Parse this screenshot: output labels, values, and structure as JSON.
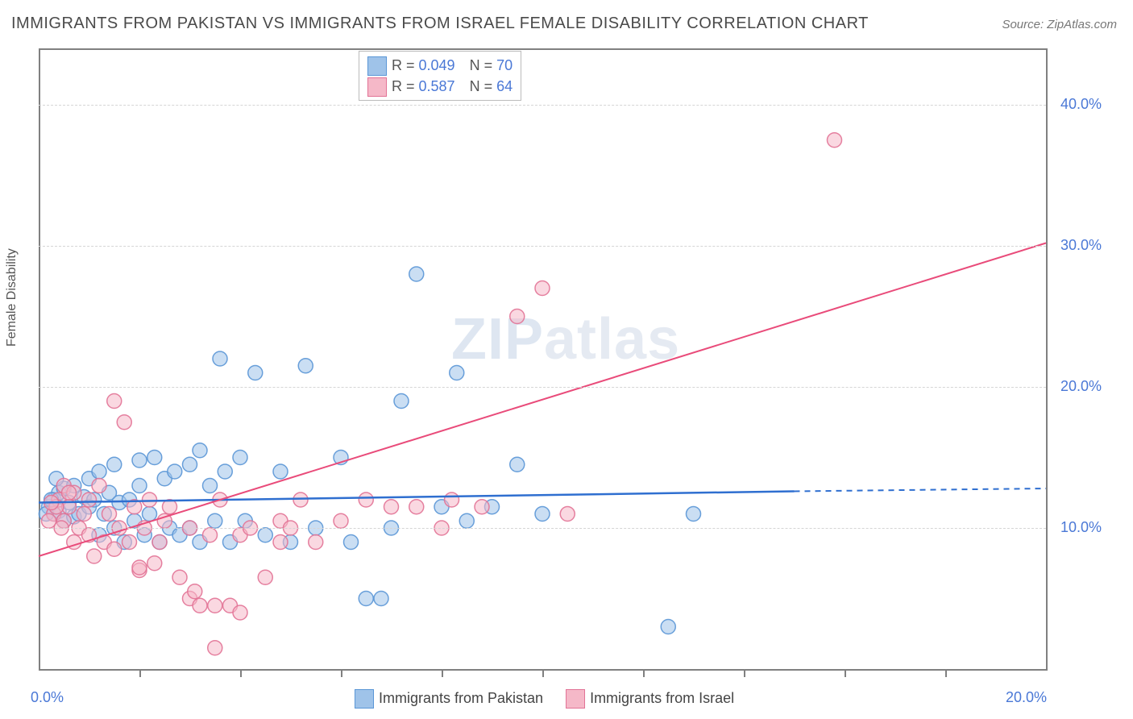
{
  "title": "IMMIGRANTS FROM PAKISTAN VS IMMIGRANTS FROM ISRAEL FEMALE DISABILITY CORRELATION CHART",
  "source": "Source: ZipAtlas.com",
  "watermark": "ZIPatlas",
  "ylabel": "Female Disability",
  "chart": {
    "type": "scatter",
    "xlim": [
      0,
      20
    ],
    "ylim": [
      0,
      44
    ],
    "xticks": [
      0,
      20
    ],
    "xtick_minor": [
      2,
      4,
      6,
      8,
      10,
      12,
      14,
      16,
      18
    ],
    "yticks": [
      10,
      20,
      30,
      40
    ],
    "ytick_labels": [
      "10.0%",
      "20.0%",
      "30.0%",
      "40.0%"
    ],
    "xtick_labels": [
      "0.0%",
      "20.0%"
    ],
    "grid_color": "#d5d5d5",
    "background": "#ffffff",
    "series": [
      {
        "name": "Immigrants from Pakistan",
        "color_fill": "#9fc3e9",
        "color_stroke": "#5a96d6",
        "marker_r": 9,
        "marker_opacity": 0.55,
        "R": 0.049,
        "N": 70,
        "trend": {
          "x1": 0,
          "y1": 11.8,
          "x2": 15,
          "y2": 12.6,
          "dash_from_x": 15,
          "dash_to_x": 20,
          "dash_y": 12.8,
          "color": "#2f6fd0",
          "width": 2.5
        },
        "points": [
          [
            0.2,
            11.5
          ],
          [
            0.3,
            12.0
          ],
          [
            0.3,
            11.0
          ],
          [
            0.4,
            12.5
          ],
          [
            0.4,
            11.2
          ],
          [
            0.5,
            12.8
          ],
          [
            0.5,
            10.5
          ],
          [
            0.6,
            11.8
          ],
          [
            0.7,
            13.0
          ],
          [
            0.7,
            10.8
          ],
          [
            0.8,
            11.0
          ],
          [
            0.9,
            12.2
          ],
          [
            1.0,
            11.5
          ],
          [
            1.0,
            13.5
          ],
          [
            1.1,
            12.0
          ],
          [
            1.2,
            9.5
          ],
          [
            1.2,
            14.0
          ],
          [
            1.3,
            11.0
          ],
          [
            1.4,
            12.5
          ],
          [
            1.5,
            10.0
          ],
          [
            1.5,
            14.5
          ],
          [
            1.6,
            11.8
          ],
          [
            1.7,
            9.0
          ],
          [
            1.8,
            12.0
          ],
          [
            1.9,
            10.5
          ],
          [
            2.0,
            13.0
          ],
          [
            2.0,
            14.8
          ],
          [
            2.1,
            9.5
          ],
          [
            2.2,
            11.0
          ],
          [
            2.3,
            15.0
          ],
          [
            2.4,
            9.0
          ],
          [
            2.5,
            13.5
          ],
          [
            2.6,
            10.0
          ],
          [
            2.7,
            14.0
          ],
          [
            2.8,
            9.5
          ],
          [
            3.0,
            14.5
          ],
          [
            3.0,
            10.0
          ],
          [
            3.2,
            15.5
          ],
          [
            3.2,
            9.0
          ],
          [
            3.4,
            13.0
          ],
          [
            3.5,
            10.5
          ],
          [
            3.6,
            22.0
          ],
          [
            3.7,
            14.0
          ],
          [
            3.8,
            9.0
          ],
          [
            4.0,
            15.0
          ],
          [
            4.1,
            10.5
          ],
          [
            4.3,
            21.0
          ],
          [
            4.5,
            9.5
          ],
          [
            4.8,
            14.0
          ],
          [
            5.0,
            9.0
          ],
          [
            5.3,
            21.5
          ],
          [
            5.5,
            10.0
          ],
          [
            6.0,
            15.0
          ],
          [
            6.2,
            9.0
          ],
          [
            6.5,
            5.0
          ],
          [
            6.8,
            5.0
          ],
          [
            7.0,
            10.0
          ],
          [
            7.2,
            19.0
          ],
          [
            7.5,
            28.0
          ],
          [
            8.0,
            11.5
          ],
          [
            8.3,
            21.0
          ],
          [
            8.5,
            10.5
          ],
          [
            9.0,
            11.5
          ],
          [
            9.5,
            14.5
          ],
          [
            10.0,
            11.0
          ],
          [
            12.5,
            3.0
          ],
          [
            13.0,
            11.0
          ],
          [
            0.25,
            12.0
          ],
          [
            0.35,
            13.5
          ],
          [
            0.15,
            11.0
          ]
        ]
      },
      {
        "name": "Immigrants from Israel",
        "color_fill": "#f5b8c8",
        "color_stroke": "#e27396",
        "marker_r": 9,
        "marker_opacity": 0.55,
        "R": 0.587,
        "N": 64,
        "trend": {
          "x1": 0,
          "y1": 8.0,
          "x2": 20,
          "y2": 30.2,
          "color": "#e94b7a",
          "width": 2
        },
        "points": [
          [
            0.3,
            11.0
          ],
          [
            0.4,
            12.0
          ],
          [
            0.5,
            10.5
          ],
          [
            0.5,
            13.0
          ],
          [
            0.6,
            11.5
          ],
          [
            0.7,
            9.0
          ],
          [
            0.7,
            12.5
          ],
          [
            0.8,
            10.0
          ],
          [
            0.9,
            11.0
          ],
          [
            1.0,
            9.5
          ],
          [
            1.0,
            12.0
          ],
          [
            1.1,
            8.0
          ],
          [
            1.2,
            13.0
          ],
          [
            1.3,
            9.0
          ],
          [
            1.4,
            11.0
          ],
          [
            1.5,
            19.0
          ],
          [
            1.5,
            8.5
          ],
          [
            1.6,
            10.0
          ],
          [
            1.7,
            17.5
          ],
          [
            1.8,
            9.0
          ],
          [
            1.9,
            11.5
          ],
          [
            2.0,
            7.0
          ],
          [
            2.0,
            7.2
          ],
          [
            2.1,
            10.0
          ],
          [
            2.2,
            12.0
          ],
          [
            2.3,
            7.5
          ],
          [
            2.4,
            9.0
          ],
          [
            2.5,
            10.5
          ],
          [
            2.6,
            11.5
          ],
          [
            2.8,
            6.5
          ],
          [
            3.0,
            10.0
          ],
          [
            3.0,
            5.0
          ],
          [
            3.1,
            5.5
          ],
          [
            3.2,
            4.5
          ],
          [
            3.4,
            9.5
          ],
          [
            3.5,
            4.5
          ],
          [
            3.5,
            1.5
          ],
          [
            3.6,
            12.0
          ],
          [
            3.8,
            4.5
          ],
          [
            4.0,
            9.5
          ],
          [
            4.0,
            4.0
          ],
          [
            4.2,
            10.0
          ],
          [
            4.5,
            6.5
          ],
          [
            4.8,
            9.0
          ],
          [
            4.8,
            10.5
          ],
          [
            5.0,
            10.0
          ],
          [
            5.2,
            12.0
          ],
          [
            5.5,
            9.0
          ],
          [
            6.0,
            10.5
          ],
          [
            6.5,
            12.0
          ],
          [
            7.0,
            11.5
          ],
          [
            7.5,
            11.5
          ],
          [
            8.0,
            10.0
          ],
          [
            8.2,
            12.0
          ],
          [
            8.8,
            11.5
          ],
          [
            9.5,
            25.0
          ],
          [
            10.0,
            27.0
          ],
          [
            10.5,
            11.0
          ],
          [
            15.8,
            37.5
          ],
          [
            0.35,
            11.5
          ],
          [
            0.45,
            10.0
          ],
          [
            0.6,
            12.5
          ],
          [
            0.25,
            11.8
          ],
          [
            0.2,
            10.5
          ]
        ]
      }
    ],
    "legend_box": {
      "rows": [
        {
          "sw_fill": "#9fc3e9",
          "sw_stroke": "#5a96d6",
          "label_r": "R =",
          "val_r": "0.049",
          "label_n": "N =",
          "val_n": "70"
        },
        {
          "sw_fill": "#f5b8c8",
          "sw_stroke": "#e27396",
          "label_r": "R =",
          "val_r": "0.587",
          "label_n": "N =",
          "val_n": "64"
        }
      ]
    },
    "bottom_legend": [
      {
        "sw_fill": "#9fc3e9",
        "sw_stroke": "#5a96d6",
        "label": "Immigrants from Pakistan"
      },
      {
        "sw_fill": "#f5b8c8",
        "sw_stroke": "#e27396",
        "label": "Immigrants from Israel"
      }
    ]
  }
}
